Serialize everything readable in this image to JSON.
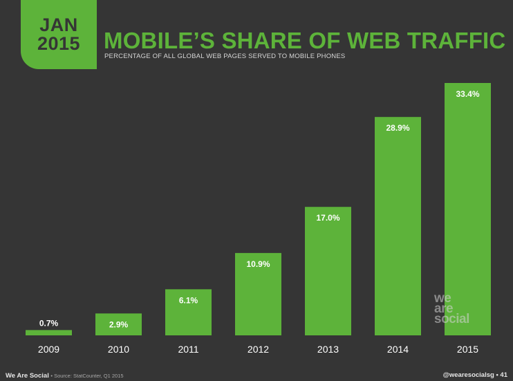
{
  "badge": {
    "month": "JAN",
    "year": "2015"
  },
  "title": "MOBILE’S SHARE OF WEB TRAFFIC",
  "subtitle": "PERCENTAGE OF ALL GLOBAL WEB PAGES SERVED TO MOBILE PHONES",
  "footer": {
    "brand": "We Are Social",
    "source": "Source: StatCounter, Q1 2015",
    "handle": "@wearesocialsg",
    "page": "41"
  },
  "logo": {
    "line1": "we",
    "line2": "are",
    "line3": "social"
  },
  "colors": {
    "background": "#353535",
    "accent": "#5DB33A",
    "text": "#FFFFFF"
  },
  "chart_data": {
    "type": "bar",
    "title": "MOBILE’S SHARE OF WEB TRAFFIC",
    "subtitle": "PERCENTAGE OF ALL GLOBAL WEB PAGES SERVED TO MOBILE PHONES",
    "categories": [
      "2009",
      "2010",
      "2011",
      "2012",
      "2013",
      "2014",
      "2015"
    ],
    "values": [
      0.7,
      2.9,
      6.1,
      10.9,
      17.0,
      28.9,
      33.4
    ],
    "value_labels": [
      "0.7%",
      "2.9%",
      "6.1%",
      "10.9%",
      "17.0%",
      "28.9%",
      "33.4%"
    ],
    "xlabel": "",
    "ylabel": "",
    "grid": false,
    "legend": "none"
  }
}
